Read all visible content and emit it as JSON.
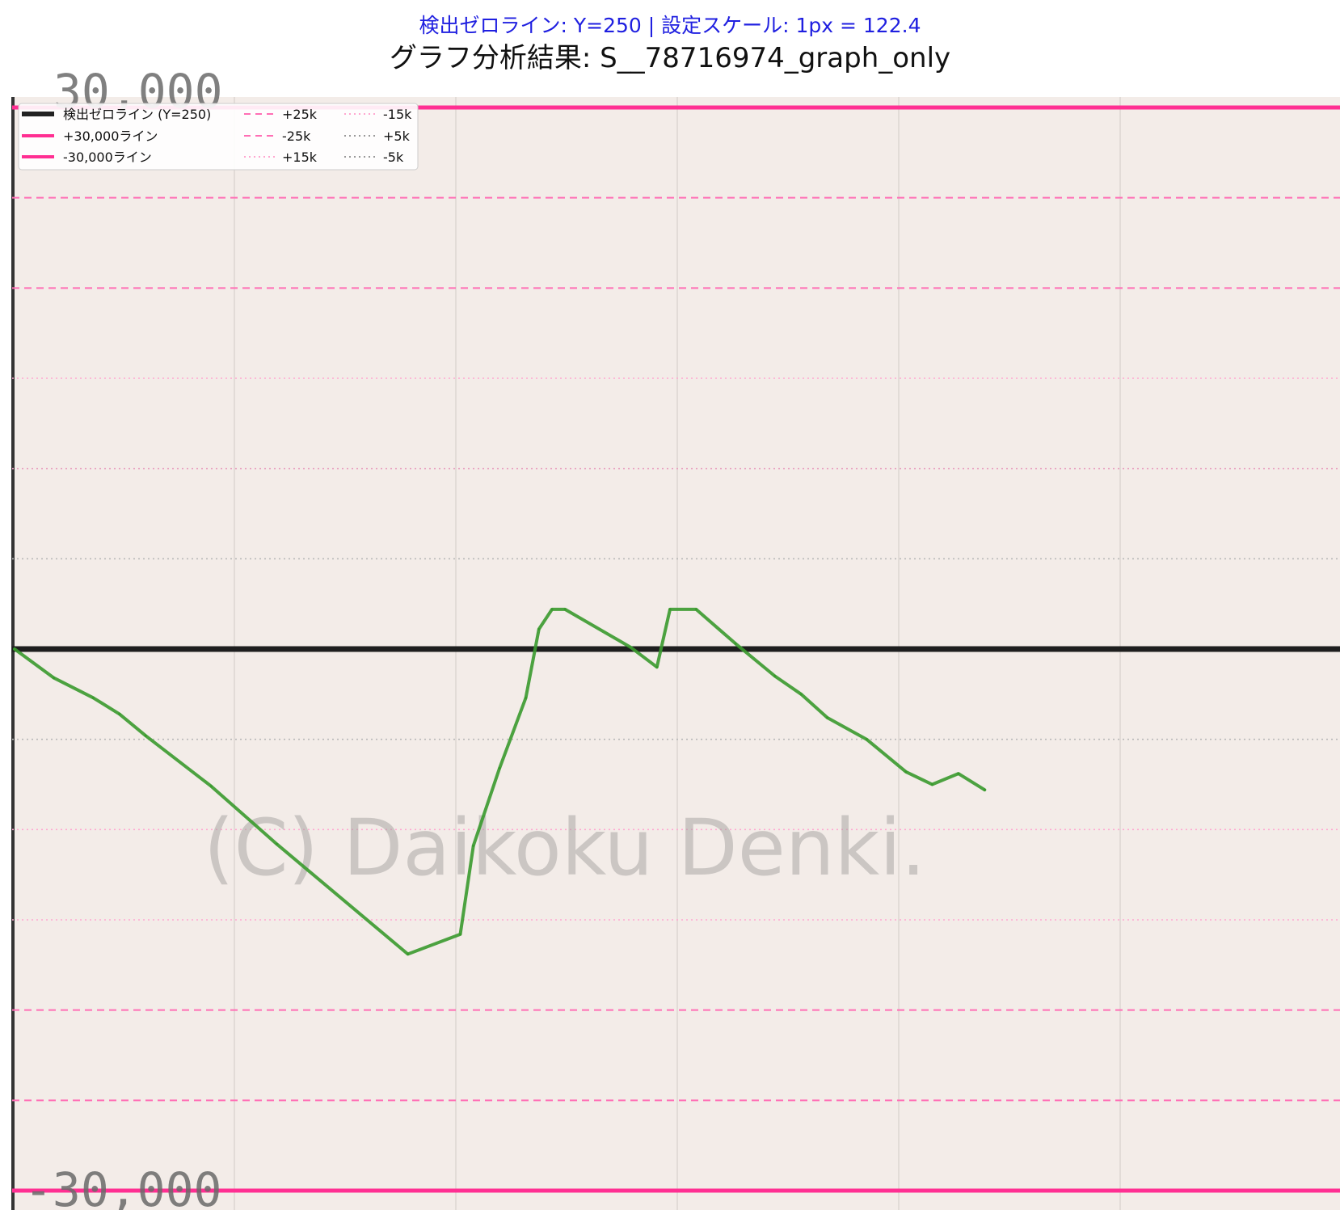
{
  "chart_data": {
    "type": "line",
    "subtitle": "検出ゼロライン: Y=250 | 設定スケール: 1px = 122.4",
    "title": "グラフ分析結果: S__78716974_graph_only",
    "watermark": "(C) Daikoku Denki.",
    "background_labels": {
      "top": "30,000",
      "bottom": "-30,000"
    },
    "ylim": [
      -30000,
      30000
    ],
    "xlim": [
      0,
      1
    ],
    "grid": true,
    "legend_position": "top-left",
    "legend": [
      {
        "label": "検出ゼロライン (Y=250)",
        "color": "#222222",
        "style": "solid-thick"
      },
      {
        "label": "+30,000ライン",
        "color": "#ff2f92",
        "style": "solid"
      },
      {
        "label": "-30,000ライン",
        "color": "#ff2f92",
        "style": "solid"
      },
      {
        "label": "+25k",
        "color": "#ff6fb5",
        "style": "dashed"
      },
      {
        "label": "-25k",
        "color": "#ff6fb5",
        "style": "dashed"
      },
      {
        "label": "+15k",
        "color": "#ffa7d0",
        "style": "dotted"
      },
      {
        "label": "-15k",
        "color": "#ffa7d0",
        "style": "dotted"
      },
      {
        "label": "+5k",
        "color": "#9a9a9a",
        "style": "dotted"
      },
      {
        "label": "-5k",
        "color": "#9a9a9a",
        "style": "dotted"
      }
    ],
    "reference_lines": [
      {
        "value": 30000,
        "color": "#ff2f92",
        "style": "solid"
      },
      {
        "value": -30000,
        "color": "#ff2f92",
        "style": "solid"
      },
      {
        "value": 25000,
        "color": "#ff6fb5",
        "style": "dashed"
      },
      {
        "value": -25000,
        "color": "#ff6fb5",
        "style": "dashed"
      },
      {
        "value": 20000,
        "color": "#ff6fb5",
        "style": "dashed"
      },
      {
        "value": -20000,
        "color": "#ff6fb5",
        "style": "dashed"
      },
      {
        "value": 15000,
        "color": "#ffa7d0",
        "style": "dotted"
      },
      {
        "value": -15000,
        "color": "#ffa7d0",
        "style": "dotted"
      },
      {
        "value": 10000,
        "color": "#e8a0c0",
        "style": "dotted"
      },
      {
        "value": -10000,
        "color": "#ffa7d0",
        "style": "dotted"
      },
      {
        "value": 5000,
        "color": "#b8b8b8",
        "style": "dotted"
      },
      {
        "value": -5000,
        "color": "#b8b8b8",
        "style": "dotted"
      },
      {
        "value": 0,
        "color": "#1e1e1e",
        "style": "solid-thick"
      }
    ],
    "series": [
      {
        "color": "#3a9a2e",
        "x": [
          0.0,
          0.03,
          0.06,
          0.08,
          0.1,
          0.15,
          0.2,
          0.3,
          0.34,
          0.35,
          0.37,
          0.39,
          0.4,
          0.41,
          0.42,
          0.47,
          0.49,
          0.5,
          0.52,
          0.55,
          0.58,
          0.6,
          0.62,
          0.65,
          0.68,
          0.7,
          0.72,
          0.74
        ],
        "y": [
          0,
          -1600,
          -2700,
          -3600,
          -4800,
          -7600,
          -10800,
          -16900,
          -15800,
          -10900,
          -6600,
          -2700,
          1100,
          2200,
          2200,
          100,
          -1000,
          2200,
          2200,
          300,
          -1500,
          -2500,
          -3800,
          -5000,
          -6800,
          -7500,
          -6900,
          -7800
        ]
      }
    ]
  }
}
